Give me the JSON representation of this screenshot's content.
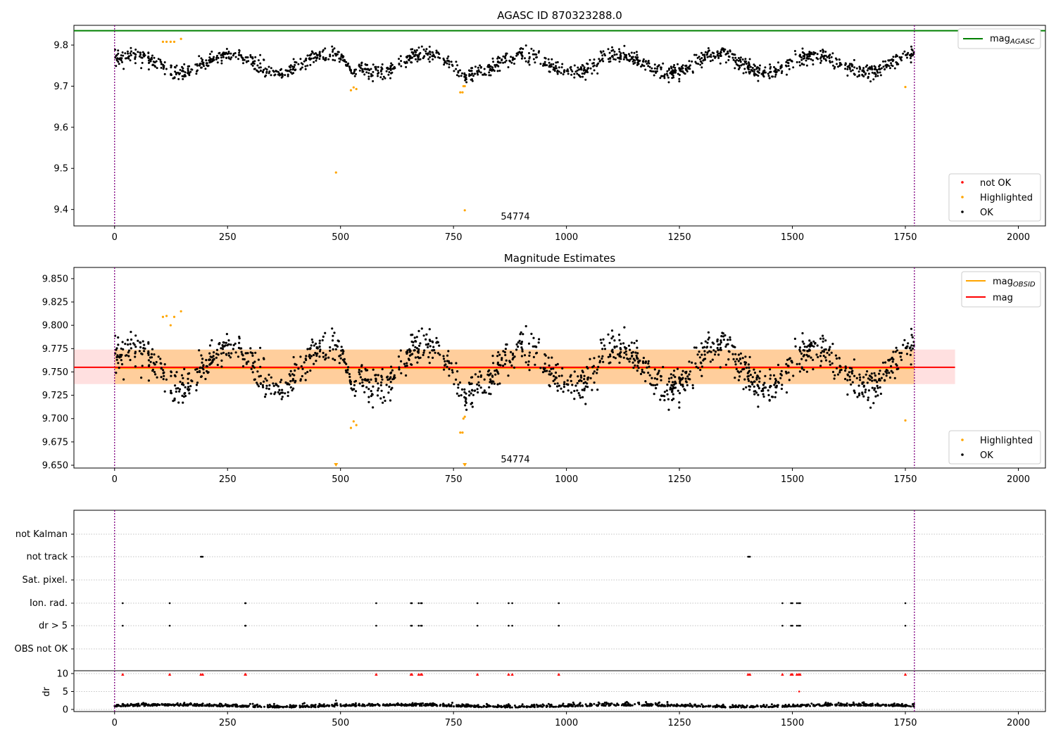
{
  "chart_data": [
    {
      "type": "scatter",
      "title": "AGASC ID 870323288.0",
      "annotation": "54774",
      "xlim": [
        -90,
        2060
      ],
      "ylim": [
        9.36,
        9.848
      ],
      "x_ticks": [
        0,
        250,
        500,
        750,
        1000,
        1250,
        1500,
        1750,
        2000
      ],
      "y_ticks": [
        9.4,
        9.5,
        9.6,
        9.7,
        9.8
      ],
      "y_tick_labels": [
        "9.4",
        "9.5",
        "9.6",
        "9.7",
        "9.8"
      ],
      "x_tick_labels": [
        "0",
        "250",
        "500",
        "750",
        "1000",
        "1250",
        "1500",
        "1750",
        "2000"
      ],
      "vlines": [
        0,
        1770
      ],
      "hline": {
        "name": "mag",
        "subscript": "AGASC",
        "value": 9.835,
        "color": "#008000"
      },
      "legend_lines": [
        {
          "name": "mag",
          "subscript": "AGASC",
          "color": "#008000"
        }
      ],
      "legend_points": [
        {
          "name": "not OK",
          "color": "#ff0000"
        },
        {
          "name": "Highlighted",
          "color": "#ffa500"
        },
        {
          "name": "OK",
          "color": "#000000"
        }
      ],
      "ok_points": {
        "color": "#000000",
        "x_range": [
          0,
          1770
        ],
        "y_center": 9.755,
        "y_spread": 0.02
      },
      "highlighted_points": {
        "color": "#ffa500",
        "x": [
          107,
          115,
          124,
          132,
          147,
          523,
          529,
          535,
          765,
          770,
          772,
          775,
          490,
          775,
          1750
        ],
        "y": [
          9.808,
          9.808,
          9.808,
          9.808,
          9.815,
          9.69,
          9.697,
          9.693,
          9.685,
          9.685,
          9.7,
          9.7,
          9.49,
          9.398,
          9.698
        ]
      }
    },
    {
      "type": "scatter",
      "title": "Magnitude Estimates",
      "annotation": "54774",
      "xlim": [
        -90,
        2060
      ],
      "ylim": [
        9.647,
        9.862
      ],
      "x_ticks": [
        0,
        250,
        500,
        750,
        1000,
        1250,
        1500,
        1750,
        2000
      ],
      "x_tick_labels": [
        "0",
        "250",
        "500",
        "750",
        "1000",
        "1250",
        "1500",
        "1750",
        "2000"
      ],
      "y_ticks": [
        9.65,
        9.675,
        9.7,
        9.725,
        9.75,
        9.775,
        9.8,
        9.825,
        9.85
      ],
      "y_tick_labels": [
        "9.650",
        "9.675",
        "9.700",
        "9.725",
        "9.750",
        "9.775",
        "9.800",
        "9.825",
        "9.850"
      ],
      "vlines": [
        0,
        1770
      ],
      "mag_line": {
        "name": "mag",
        "value": 9.755,
        "x_range": [
          -90,
          1860
        ],
        "band": [
          9.737,
          9.774
        ],
        "color": "#ff0000"
      },
      "mag_obsid": {
        "name": "mag",
        "subscript": "OBSID",
        "value": 9.754,
        "x_range": [
          0,
          1770
        ],
        "band": [
          9.737,
          9.774
        ],
        "color": "#ffa500"
      },
      "legend_lines": [
        {
          "name": "mag",
          "subscript": "OBSID",
          "color": "#ffa500"
        },
        {
          "name": "mag",
          "subscript": "",
          "color": "#ff0000"
        }
      ],
      "legend_points": [
        {
          "name": "Highlighted",
          "color": "#ffa500"
        },
        {
          "name": "OK",
          "color": "#000000"
        }
      ],
      "ok_points": {
        "color": "#000000",
        "x_range": [
          0,
          1770
        ],
        "y_center": 9.755,
        "y_spread": 0.02
      },
      "highlighted_points": {
        "color": "#ffa500",
        "x": [
          107,
          115,
          124,
          132,
          147,
          523,
          529,
          535,
          765,
          770,
          772,
          775,
          1750
        ],
        "y": [
          9.809,
          9.81,
          9.8,
          9.809,
          9.815,
          9.69,
          9.697,
          9.693,
          9.685,
          9.685,
          9.7,
          9.702,
          9.698
        ]
      },
      "clipped_points": {
        "x": [
          490,
          775
        ],
        "color": "#ffa500"
      }
    },
    {
      "type": "scatter",
      "title": "",
      "xlim": [
        -90,
        2060
      ],
      "x_ticks": [
        0,
        250,
        500,
        750,
        1000,
        1250,
        1500,
        1750,
        2000
      ],
      "x_tick_labels": [
        "0",
        "250",
        "500",
        "750",
        "1000",
        "1250",
        "1500",
        "1750",
        "2000"
      ],
      "vlines": [
        0,
        1770
      ],
      "flag_rows": [
        "not Kalman",
        "not track",
        "Sat. pixel.",
        "Ion. rad.",
        "dr > 5",
        "OBS not OK"
      ],
      "flags": {
        "not track": [
          191,
          193,
          195,
          1402,
          1404,
          1406
        ],
        "Ion. rad.": [
          18,
          122,
          289,
          290,
          579,
          656,
          658,
          673,
          678,
          680,
          803,
          872,
          880,
          983,
          1478,
          1497,
          1500,
          1510,
          1514,
          1517,
          1750
        ],
        "dr > 5": [
          18,
          122,
          289,
          290,
          579,
          656,
          658,
          673,
          678,
          680,
          803,
          872,
          880,
          983,
          1478,
          1497,
          1500,
          1510,
          1514,
          1517,
          1750
        ]
      },
      "dr_panel": {
        "ylabel": "dr",
        "ylim": [
          -0.3,
          10.5
        ],
        "y_ticks": [
          0,
          5,
          10
        ],
        "y_tick_labels": [
          "0",
          "5",
          "10"
        ],
        "dr_center": 0.8,
        "outliers": {
          "x": [
            490,
            1515
          ],
          "y": [
            2.5,
            5.0
          ]
        },
        "capped_markers": {
          "x": [
            18,
            122,
            191,
            195,
            289,
            290,
            579,
            656,
            658,
            673,
            678,
            680,
            803,
            872,
            880,
            983,
            1402,
            1406,
            1478,
            1497,
            1500,
            1510,
            1514,
            1517,
            1750
          ],
          "color": "#ff0000"
        }
      }
    }
  ]
}
